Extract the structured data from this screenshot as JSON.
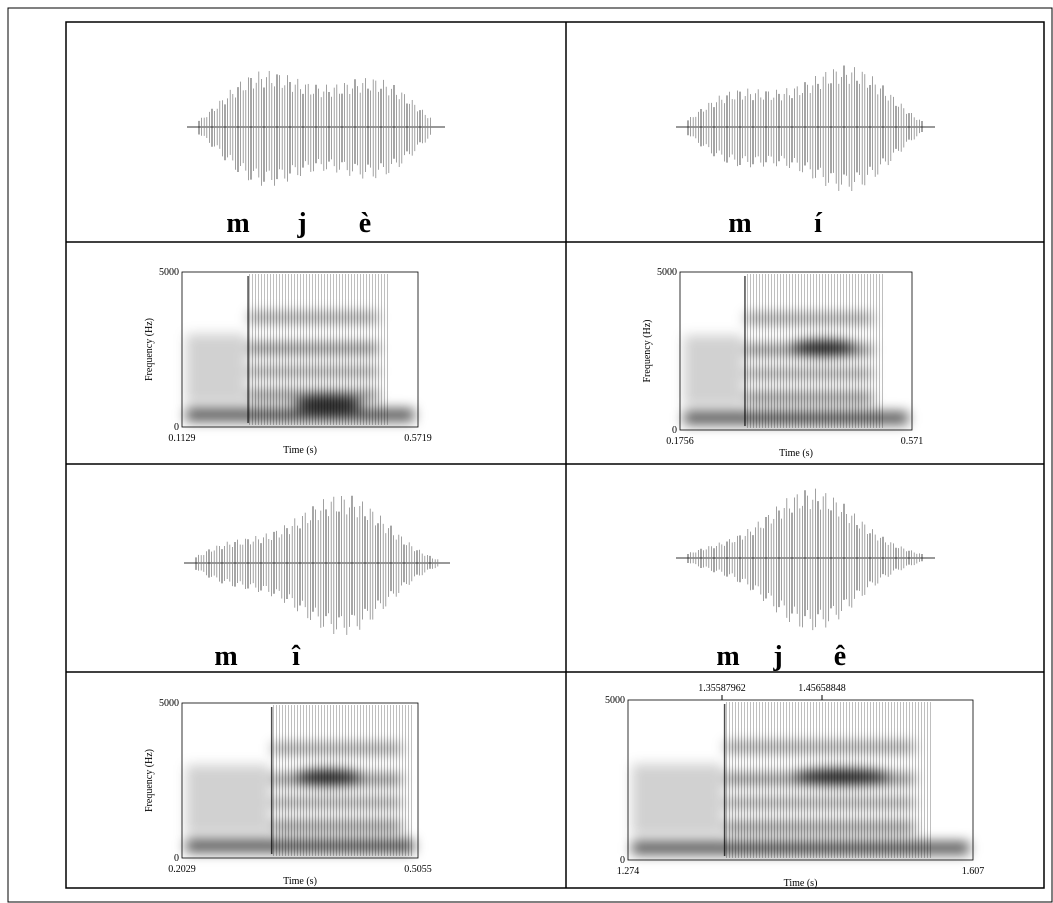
{
  "waveforms": [
    {
      "segments": [
        "m",
        "j",
        "è"
      ]
    },
    {
      "segments": [
        "m",
        "í"
      ]
    },
    {
      "segments": [
        "m",
        "î"
      ]
    },
    {
      "segments": [
        "m",
        "j",
        "ê"
      ]
    }
  ],
  "spectrograms": [
    {
      "ymax": "5000",
      "ymin": "0",
      "ylabel": "Frequency (Hz)",
      "xlabel": "Time (s)",
      "xmin": "0.1129",
      "xmax": "0.5719"
    },
    {
      "ymax": "5000",
      "ymin": "0",
      "ylabel": "Frequency (Hz)",
      "xlabel": "Time (s)",
      "xmin": "0.1756",
      "xmax": "0.571"
    },
    {
      "ymax": "5000",
      "ymin": "0",
      "ylabel": "Frequency (Hz)",
      "xlabel": "Time (s)",
      "xmin": "0.2029",
      "xmax": "0.5055"
    },
    {
      "ymax": "5000",
      "ymin": "0",
      "xlabel": "Time (s)",
      "xmin": "1.274",
      "xmax": "1.607",
      "markers": [
        "1.35587962",
        "1.45658848"
      ]
    }
  ]
}
